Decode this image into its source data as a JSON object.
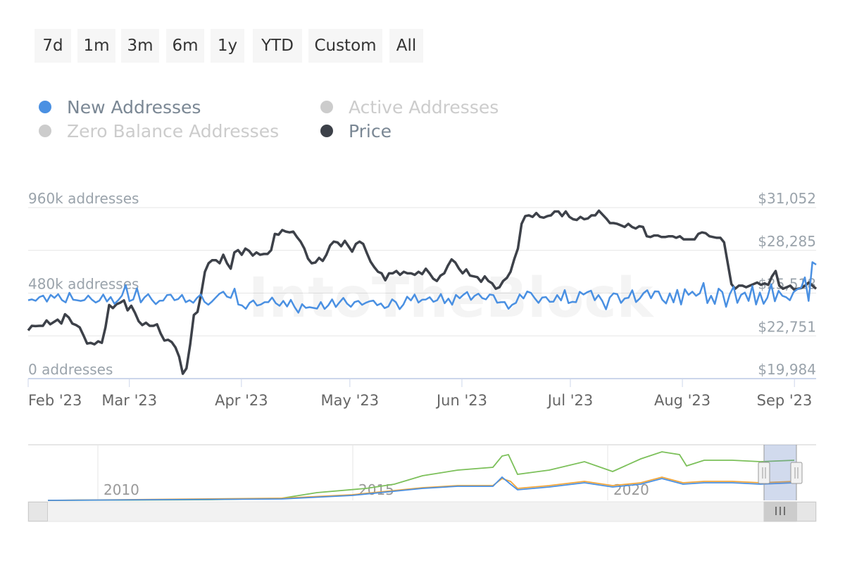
{
  "range_buttons": [
    "7d",
    "1m",
    "3m",
    "6m",
    "1y",
    "YTD",
    "Custom",
    "All"
  ],
  "legend": [
    {
      "label": "New Addresses",
      "color": "#4a90e2",
      "active": true
    },
    {
      "label": "Active Addresses",
      "color": "#cccccc",
      "active": false
    },
    {
      "label": "Zero Balance Addresses",
      "color": "#cccccc",
      "active": false
    },
    {
      "label": "Price",
      "color": "#3d4149",
      "active": true
    }
  ],
  "chart_data": {
    "type": "line",
    "x_start": "2023-02-01",
    "x_end": "2023-09-07",
    "x_tick_labels": [
      "Feb '23",
      "Mar '23",
      "Apr '23",
      "May '23",
      "Jun '23",
      "Jul '23",
      "Aug '23",
      "Sep '23"
    ],
    "y_left": {
      "labels": [
        "960k addresses",
        "480k addresses",
        "0 addresses"
      ],
      "range": [
        0,
        960000
      ]
    },
    "y_right": {
      "labels": [
        "$31,052",
        "$28,285",
        "$25,518",
        "$22,751",
        "$19,984"
      ],
      "range": [
        19984,
        31052
      ]
    },
    "watermark": "IntoTheBlock",
    "series": [
      {
        "name": "New Addresses",
        "color": "#4a90e2",
        "axis": "left",
        "values": [
          440000,
          445000,
          437000,
          458000,
          466000,
          432000,
          470000,
          453000,
          474000,
          441000,
          428000,
          482000,
          443000,
          440000,
          436000,
          441000,
          466000,
          443000,
          427000,
          438000,
          472000,
          433000,
          458000,
          420000,
          440000,
          466000,
          525000,
          435000,
          444000,
          507000,
          428000,
          456000,
          474000,
          442000,
          418000,
          437000,
          438000,
          469000,
          471000,
          440000,
          447000,
          470000,
          429000,
          440000,
          426000,
          453000,
          472000,
          431000,
          415000,
          433000,
          455000,
          477000,
          488000,
          460000,
          453000,
          505000,
          416000,
          411000,
          392000,
          425000,
          439000,
          410000,
          416000,
          429000,
          429000,
          455000,
          423000,
          409000,
          436000,
          405000,
          442000,
          402000,
          370000,
          418000,
          397000,
          401000,
          397000,
          393000,
          430000,
          391000,
          412000,
          445000,
          402000,
          429000,
          453000,
          421000,
          403000,
          430000,
          436000,
          414000,
          426000,
          434000,
          438000,
          412000,
          422000,
          396000,
          405000,
          445000,
          429000,
          390000,
          416000,
          460000,
          439000,
          472000,
          427000,
          443000,
          444000,
          457000,
          431000,
          440000,
          475000,
          423000,
          449000,
          415000,
          470000,
          451000,
          471000,
          486000,
          442000,
          465000,
          477000,
          452000,
          445000,
          472000,
          469000,
          426000,
          429000,
          430000,
          392000,
          415000,
          425000,
          473000,
          450000,
          489000,
          481000,
          451000,
          425000,
          455000,
          458000,
          431000,
          432000,
          469000,
          439000,
          497000,
          424000,
          431000,
          429000,
          487000,
          472000,
          485000,
          494000,
          440000,
          469000,
          436000,
          389000,
          455000,
          479000,
          474000,
          425000,
          450000,
          454000,
          496000,
          430000,
          450000,
          480000,
          496000,
          451000,
          490000,
          489000,
          443000,
          422000,
          479000,
          428000,
          498000,
          416000,
          502000,
          470000,
          488000,
          465000,
          479000,
          537000,
          424000,
          465000,
          419000,
          505000,
          486000,
          403000,
          474000,
          516000,
          425000,
          470000,
          483000,
          436000,
          520000,
          416000,
          483000,
          420000,
          454000,
          530000,
          434000,
          493000,
          465000,
          457000,
          440000,
          486000,
          502000,
          510000,
          568000,
          436000,
          654000,
          640000
        ]
      },
      {
        "name": "Price",
        "color": "#3d4149",
        "axis": "right",
        "values": [
          23100,
          23400,
          23380,
          23400,
          23400,
          23750,
          23500,
          23650,
          23800,
          23550,
          24150,
          23950,
          23550,
          23450,
          23300,
          22800,
          22250,
          22300,
          22200,
          22400,
          22300,
          23300,
          24750,
          24550,
          24800,
          24900,
          25050,
          24400,
          24700,
          24250,
          23700,
          23450,
          23600,
          23400,
          23400,
          23500,
          22900,
          22450,
          22500,
          22350,
          22000,
          21400,
          20300,
          20650,
          22200,
          24100,
          24300,
          25500,
          26900,
          27450,
          27650,
          27650,
          27450,
          28000,
          27450,
          27100,
          28150,
          28300,
          28000,
          28400,
          28250,
          27950,
          28150,
          28000,
          28050,
          28050,
          28300,
          29350,
          29300,
          29600,
          29500,
          29450,
          29500,
          29150,
          28850,
          28400,
          27750,
          27450,
          27500,
          27800,
          27600,
          28000,
          28600,
          28850,
          28800,
          28550,
          28900,
          28550,
          28200,
          28700,
          28850,
          28700,
          28100,
          27550,
          27200,
          26900,
          26800,
          26350,
          26800,
          26800,
          26950,
          26700,
          26900,
          26800,
          26800,
          26700,
          26900,
          26750,
          27100,
          26800,
          26450,
          26300,
          26650,
          26800,
          27300,
          27700,
          27500,
          27100,
          26800,
          27050,
          26650,
          26600,
          26550,
          26250,
          26600,
          26300,
          26150,
          25800,
          25900,
          26300,
          26500,
          26900,
          27700,
          28400,
          30000,
          30500,
          30550,
          30450,
          30700,
          30450,
          30400,
          30500,
          30550,
          30800,
          30800,
          30500,
          30800,
          30450,
          30300,
          30250,
          30450,
          30300,
          30350,
          30550,
          30550,
          30850,
          30600,
          30350,
          30050,
          30050,
          30000,
          29900,
          29800,
          30000,
          29800,
          29700,
          29850,
          29800,
          29200,
          29150,
          29250,
          29250,
          29150,
          29150,
          29200,
          29200,
          29100,
          29200,
          29000,
          29000,
          29000,
          29000,
          29350,
          29450,
          29400,
          29200,
          29150,
          29100,
          29100,
          28800,
          27450,
          26100,
          25800,
          26000,
          26000,
          25900,
          26000,
          26100,
          26200,
          26050,
          26150,
          26050,
          26600,
          26950,
          26000,
          25800,
          25900,
          26000,
          25750,
          25800,
          25850,
          26000,
          26200,
          26000,
          25800
        ]
      }
    ],
    "navigator": {
      "x_tick_labels": [
        "2010",
        "2015",
        "2020"
      ],
      "series_colors": [
        "#7cc05a",
        "#f0a53a",
        "#4a90e2"
      ]
    }
  }
}
